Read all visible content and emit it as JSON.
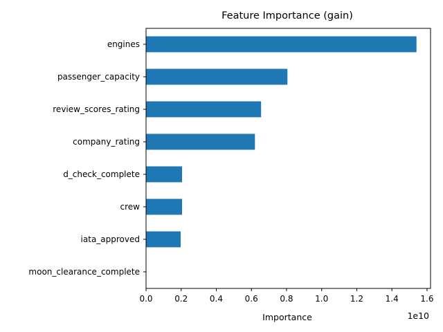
{
  "chart_data": {
    "type": "bar",
    "orientation": "horizontal",
    "title": "Feature Importance (gain)",
    "xlabel": "Importance",
    "ylabel": "",
    "x_scale_label": "1e10",
    "categories": [
      "engines",
      "passenger_capacity",
      "review_scores_rating",
      "company_rating",
      "d_check_complete",
      "crew",
      "iata_approved",
      "moon_clearance_complete"
    ],
    "values": [
      15400000000.0,
      8050000000.0,
      6550000000.0,
      6200000000.0,
      2050000000.0,
      2050000000.0,
      1970000000.0,
      0
    ],
    "xlim": [
      0,
      16200000000.0
    ],
    "x_ticks": [
      0,
      2000000000.0,
      4000000000.0,
      6000000000.0,
      8000000000.0,
      10000000000.0,
      12000000000.0,
      14000000000.0,
      16000000000.0
    ],
    "x_tick_labels": [
      "0.0",
      "0.2",
      "0.4",
      "0.6",
      "0.8",
      "1.0",
      "1.2",
      "1.4",
      "1.6"
    ],
    "bar_color": "#1f77b4",
    "grid": false,
    "legend": "none"
  }
}
